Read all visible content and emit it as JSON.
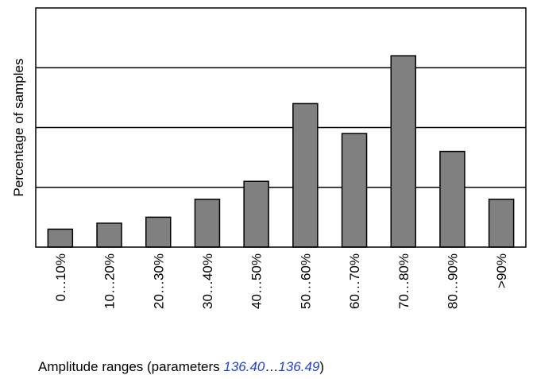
{
  "chart_data": {
    "type": "bar",
    "categories": [
      "0…10%",
      "10…20%",
      "20…30%",
      "30…40%",
      "40…50%",
      "50…60%",
      "60…70%",
      "70…80%",
      "80…90%",
      ">90%"
    ],
    "values": [
      3,
      4,
      5,
      8,
      11,
      24,
      19,
      32,
      16,
      8
    ],
    "ylim": [
      0,
      40
    ],
    "y_gridlines": [
      10,
      20,
      30
    ],
    "ylabel": "Percentage of samples",
    "xlabel_prefix": "Amplitude ranges (parameters ",
    "xlabel_param_start": "136.40",
    "xlabel_separator": "…",
    "xlabel_param_end": "136.49",
    "xlabel_suffix": ")",
    "grid": true,
    "y_tick_labels": false,
    "colors": {
      "bar": "#808080",
      "bar_border": "#000000",
      "param_text": "#1f3fd6"
    }
  }
}
